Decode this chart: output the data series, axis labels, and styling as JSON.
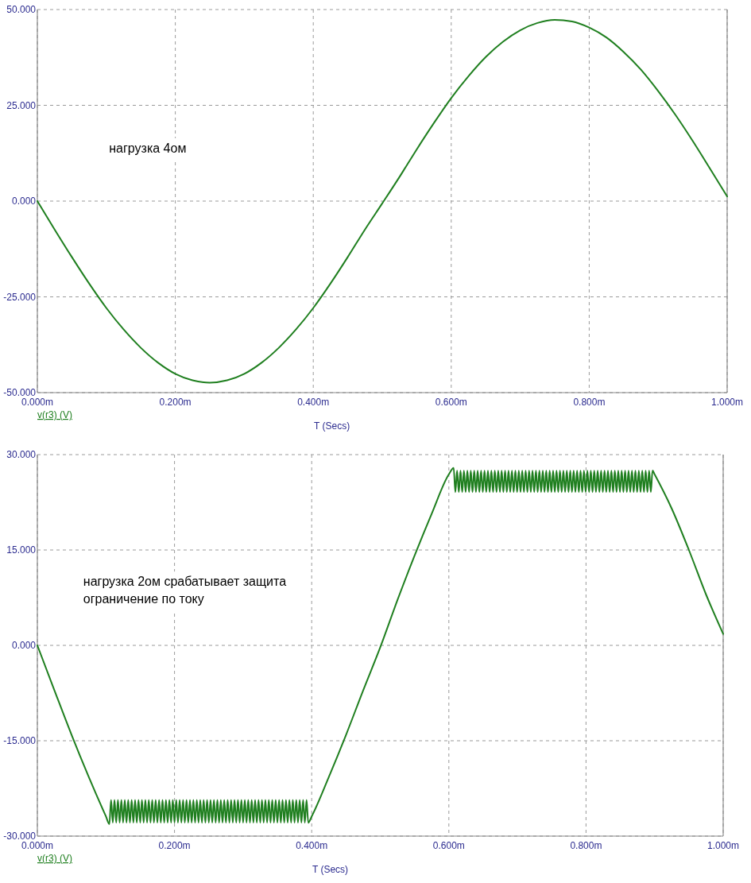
{
  "chart_data": [
    {
      "type": "line",
      "annotations": [
        "нагрузка 4ом"
      ],
      "xlabel": "T (Secs)",
      "legend": "bottom left",
      "grid": true,
      "line_style": "solid",
      "xlim": [
        0,
        1
      ],
      "xticks": [
        {
          "value": 0,
          "label": "0.000m"
        },
        {
          "value": 0.2,
          "label": "0.200m"
        },
        {
          "value": 0.4,
          "label": "0.400m"
        },
        {
          "value": 0.6,
          "label": "0.600m"
        },
        {
          "value": 0.8,
          "label": "0.800m"
        },
        {
          "value": 1,
          "label": "1.000m"
        }
      ],
      "ylim": [
        -50,
        50
      ],
      "yticks": [
        {
          "value": -50,
          "label": "-50.000"
        },
        {
          "value": -25,
          "label": "-25.000"
        },
        {
          "value": 0,
          "label": "0.000"
        },
        {
          "value": 25,
          "label": "25.000"
        },
        {
          "value": 50,
          "label": "50.000"
        }
      ],
      "x": [
        0,
        0.025,
        0.05,
        0.075,
        0.1,
        0.125,
        0.15,
        0.175,
        0.2,
        0.225,
        0.25,
        0.275,
        0.3,
        0.325,
        0.35,
        0.375,
        0.4,
        0.425,
        0.45,
        0.475,
        0.5,
        0.525,
        0.55,
        0.575,
        0.6,
        0.625,
        0.65,
        0.675,
        0.7,
        0.725,
        0.75,
        0.775,
        0.8,
        0.825,
        0.85,
        0.875,
        0.9,
        0.925,
        0.95,
        0.975,
        1
      ],
      "series": [
        {
          "name": "v(r3) (V)",
          "color": "#1f7f1f",
          "values": [
            0,
            -7.4,
            -14.6,
            -21.5,
            -27.9,
            -33.5,
            -38.3,
            -42.2,
            -45.1,
            -46.8,
            -47.4,
            -46.8,
            -45.1,
            -42.2,
            -38.3,
            -33.5,
            -27.9,
            -21.5,
            -14.6,
            -7.4,
            -0.6,
            6.3,
            13.5,
            20.4,
            26.9,
            32.6,
            37.6,
            41.6,
            44.6,
            46.5,
            47.3,
            46.9,
            45.3,
            42.7,
            38.9,
            34.3,
            28.7,
            22.5,
            15.7,
            8.5,
            1.2
          ]
        }
      ]
    },
    {
      "type": "line",
      "annotations": [
        "нагрузка 2ом срабатывает защита\nограничение по току"
      ],
      "xlabel": "T (Secs)",
      "legend": "bottom left",
      "grid": true,
      "line_style": "solid",
      "xlim": [
        0,
        1
      ],
      "xticks": [
        {
          "value": 0,
          "label": "0.000m"
        },
        {
          "value": 0.2,
          "label": "0.200m"
        },
        {
          "value": 0.4,
          "label": "0.400m"
        },
        {
          "value": 0.6,
          "label": "0.600m"
        },
        {
          "value": 0.8,
          "label": "0.800m"
        },
        {
          "value": 1,
          "label": "1.000m"
        }
      ],
      "ylim": [
        -30,
        30
      ],
      "yticks": [
        {
          "value": -30,
          "label": "-30.000"
        },
        {
          "value": -15,
          "label": "-15.000"
        },
        {
          "value": 0,
          "label": "0.000"
        },
        {
          "value": 15,
          "label": "15.000"
        },
        {
          "value": 30,
          "label": "30.000"
        }
      ],
      "x": [
        0,
        0.025,
        0.05,
        0.075,
        0.1,
        0.105,
        0.1075,
        0.11,
        0.1125,
        0.115,
        0.1175,
        0.12,
        0.1225,
        0.125,
        0.1275,
        0.13,
        0.1325,
        0.135,
        0.1375,
        0.14,
        0.1425,
        0.145,
        0.1475,
        0.15,
        0.1525,
        0.155,
        0.1575,
        0.16,
        0.1625,
        0.165,
        0.1675,
        0.17,
        0.1725,
        0.175,
        0.1775,
        0.18,
        0.1825,
        0.185,
        0.1875,
        0.19,
        0.1925,
        0.195,
        0.1975,
        0.2,
        0.2025,
        0.205,
        0.2075,
        0.21,
        0.2125,
        0.215,
        0.2175,
        0.22,
        0.2225,
        0.225,
        0.2275,
        0.23,
        0.2325,
        0.235,
        0.2375,
        0.24,
        0.2425,
        0.245,
        0.2475,
        0.25,
        0.2525,
        0.255,
        0.2575,
        0.26,
        0.2625,
        0.265,
        0.2675,
        0.27,
        0.2725,
        0.275,
        0.2775,
        0.28,
        0.2825,
        0.285,
        0.2875,
        0.29,
        0.2925,
        0.295,
        0.2975,
        0.3,
        0.3025,
        0.305,
        0.3075,
        0.31,
        0.3125,
        0.315,
        0.3175,
        0.32,
        0.3225,
        0.325,
        0.3275,
        0.33,
        0.3325,
        0.335,
        0.3375,
        0.34,
        0.3425,
        0.345,
        0.3475,
        0.35,
        0.3525,
        0.355,
        0.3575,
        0.36,
        0.3625,
        0.365,
        0.3675,
        0.37,
        0.3725,
        0.375,
        0.3775,
        0.38,
        0.3825,
        0.385,
        0.3875,
        0.39,
        0.3925,
        0.395,
        0.4,
        0.425,
        0.45,
        0.475,
        0.5,
        0.525,
        0.55,
        0.575,
        0.6,
        0.607,
        0.6095,
        0.612,
        0.6145,
        0.617,
        0.6195,
        0.622,
        0.6245,
        0.627,
        0.6295,
        0.632,
        0.6345,
        0.637,
        0.6395,
        0.642,
        0.6445,
        0.647,
        0.6495,
        0.652,
        0.6545,
        0.657,
        0.6595,
        0.662,
        0.6645,
        0.667,
        0.6695,
        0.672,
        0.6745,
        0.677,
        0.6795,
        0.682,
        0.6845,
        0.687,
        0.6895,
        0.692,
        0.6945,
        0.697,
        0.6995,
        0.702,
        0.7045,
        0.707,
        0.7095,
        0.712,
        0.7145,
        0.717,
        0.7195,
        0.722,
        0.7245,
        0.727,
        0.7295,
        0.732,
        0.7345,
        0.737,
        0.7395,
        0.742,
        0.7445,
        0.747,
        0.7495,
        0.752,
        0.7545,
        0.757,
        0.7595,
        0.762,
        0.7645,
        0.767,
        0.7695,
        0.772,
        0.7745,
        0.777,
        0.7795,
        0.782,
        0.7845,
        0.787,
        0.7895,
        0.792,
        0.7945,
        0.797,
        0.7995,
        0.802,
        0.8045,
        0.807,
        0.8095,
        0.812,
        0.8145,
        0.817,
        0.8195,
        0.822,
        0.8245,
        0.827,
        0.8295,
        0.832,
        0.8345,
        0.837,
        0.8395,
        0.842,
        0.8445,
        0.847,
        0.8495,
        0.852,
        0.8545,
        0.857,
        0.8595,
        0.862,
        0.8645,
        0.867,
        0.8695,
        0.872,
        0.8745,
        0.877,
        0.8795,
        0.882,
        0.8845,
        0.887,
        0.8895,
        0.892,
        0.8945,
        0.897,
        0.9,
        0.925,
        0.95,
        0.975,
        1
      ],
      "series": [
        {
          "name": "v(r3) (V)",
          "color": "#1f7f1f",
          "values": [
            0,
            -7.1,
            -14.1,
            -20.7,
            -26.9,
            -28.1,
            -24.3,
            -27.9,
            -24.3,
            -27.9,
            -24.3,
            -27.9,
            -24.3,
            -27.9,
            -24.3,
            -27.9,
            -24.3,
            -27.9,
            -24.3,
            -27.9,
            -24.3,
            -27.9,
            -24.3,
            -27.9,
            -24.3,
            -27.9,
            -24.3,
            -27.9,
            -24.3,
            -27.9,
            -24.3,
            -27.9,
            -24.3,
            -27.9,
            -24.3,
            -27.9,
            -24.3,
            -27.9,
            -24.3,
            -27.9,
            -24.3,
            -27.9,
            -24.3,
            -27.9,
            -24.3,
            -27.9,
            -24.3,
            -27.9,
            -24.3,
            -27.9,
            -24.3,
            -27.9,
            -24.3,
            -27.9,
            -24.3,
            -27.9,
            -24.3,
            -27.9,
            -24.3,
            -27.9,
            -24.3,
            -27.9,
            -24.3,
            -27.9,
            -24.3,
            -27.9,
            -24.3,
            -27.9,
            -24.3,
            -27.9,
            -24.3,
            -27.9,
            -24.3,
            -27.9,
            -24.3,
            -27.9,
            -24.3,
            -27.9,
            -24.3,
            -27.9,
            -24.3,
            -27.9,
            -24.3,
            -27.9,
            -24.3,
            -27.9,
            -24.3,
            -27.9,
            -24.3,
            -27.9,
            -24.3,
            -27.9,
            -24.3,
            -27.9,
            -24.3,
            -27.9,
            -24.3,
            -27.9,
            -24.3,
            -27.9,
            -24.3,
            -27.9,
            -24.3,
            -27.9,
            -24.3,
            -27.9,
            -24.3,
            -27.9,
            -24.3,
            -27.9,
            -24.3,
            -27.9,
            -24.3,
            -27.9,
            -24.3,
            -27.9,
            -24.3,
            -27.9,
            -24.3,
            -27.9,
            -24.3,
            -27.9,
            -26.9,
            -20.7,
            -14.1,
            -7.1,
            -0.3,
            7.1,
            14.1,
            20.7,
            26.9,
            27.9,
            24.1,
            27.5,
            24.1,
            27.5,
            24.1,
            27.5,
            24.1,
            27.5,
            24.1,
            27.5,
            24.1,
            27.5,
            24.1,
            27.5,
            24.1,
            27.5,
            24.1,
            27.5,
            24.1,
            27.5,
            24.1,
            27.5,
            24.1,
            27.5,
            24.1,
            27.5,
            24.1,
            27.5,
            24.1,
            27.5,
            24.1,
            27.5,
            24.1,
            27.5,
            24.1,
            27.5,
            24.1,
            27.5,
            24.1,
            27.5,
            24.1,
            27.5,
            24.1,
            27.5,
            24.1,
            27.5,
            24.1,
            27.5,
            24.1,
            27.5,
            24.1,
            27.5,
            24.1,
            27.5,
            24.1,
            27.5,
            24.1,
            27.5,
            24.1,
            27.5,
            24.1,
            27.5,
            24.1,
            27.5,
            24.1,
            27.5,
            24.1,
            27.5,
            24.1,
            27.5,
            24.1,
            27.5,
            24.1,
            27.5,
            24.1,
            27.5,
            24.1,
            27.5,
            24.1,
            27.5,
            24.1,
            27.5,
            24.1,
            27.5,
            24.1,
            27.5,
            24.1,
            27.5,
            24.1,
            27.5,
            24.1,
            27.5,
            24.1,
            27.5,
            24.1,
            27.5,
            24.1,
            27.5,
            24.1,
            27.5,
            24.1,
            27.5,
            24.1,
            27.5,
            24.1,
            27.5,
            24.1,
            27.5,
            24.1,
            27.5,
            24.1,
            27.5,
            24.1,
            27.5,
            24.1,
            27.5,
            26.9,
            21.5,
            15,
            8,
            1.8
          ]
        }
      ]
    }
  ]
}
